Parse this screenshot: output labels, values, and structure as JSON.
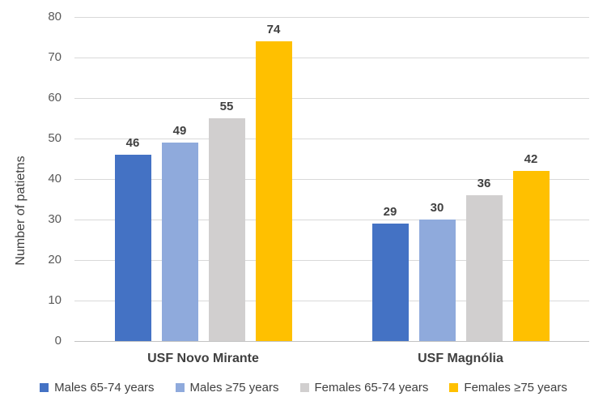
{
  "chart_data": {
    "type": "bar",
    "title": "",
    "xlabel": "",
    "ylabel": "Number of patietns",
    "categories": [
      "USF Novo Mirante",
      "USF Magnólia"
    ],
    "series": [
      {
        "name": "Males 65-74 years",
        "color": "#4472C4",
        "values": [
          46,
          29
        ]
      },
      {
        "name": "Males ≥75 years",
        "color": "#8FAADC",
        "values": [
          49,
          30
        ]
      },
      {
        "name": "Females 65-74 years",
        "color": "#D1CFCF",
        "values": [
          55,
          36
        ]
      },
      {
        "name": "Females ≥75 years",
        "color": "#FFC000",
        "values": [
          74,
          42
        ]
      }
    ],
    "ylim": [
      0,
      80
    ],
    "ytick_step": 10,
    "grid": "horizontal",
    "legend_position": "bottom",
    "data_labels": true
  },
  "colors": {
    "background": "#FFFFFF",
    "gridline": "#D9D9D9",
    "axis_line": "#C3C3C3",
    "tick_label": "#595959",
    "text": "#404040"
  }
}
